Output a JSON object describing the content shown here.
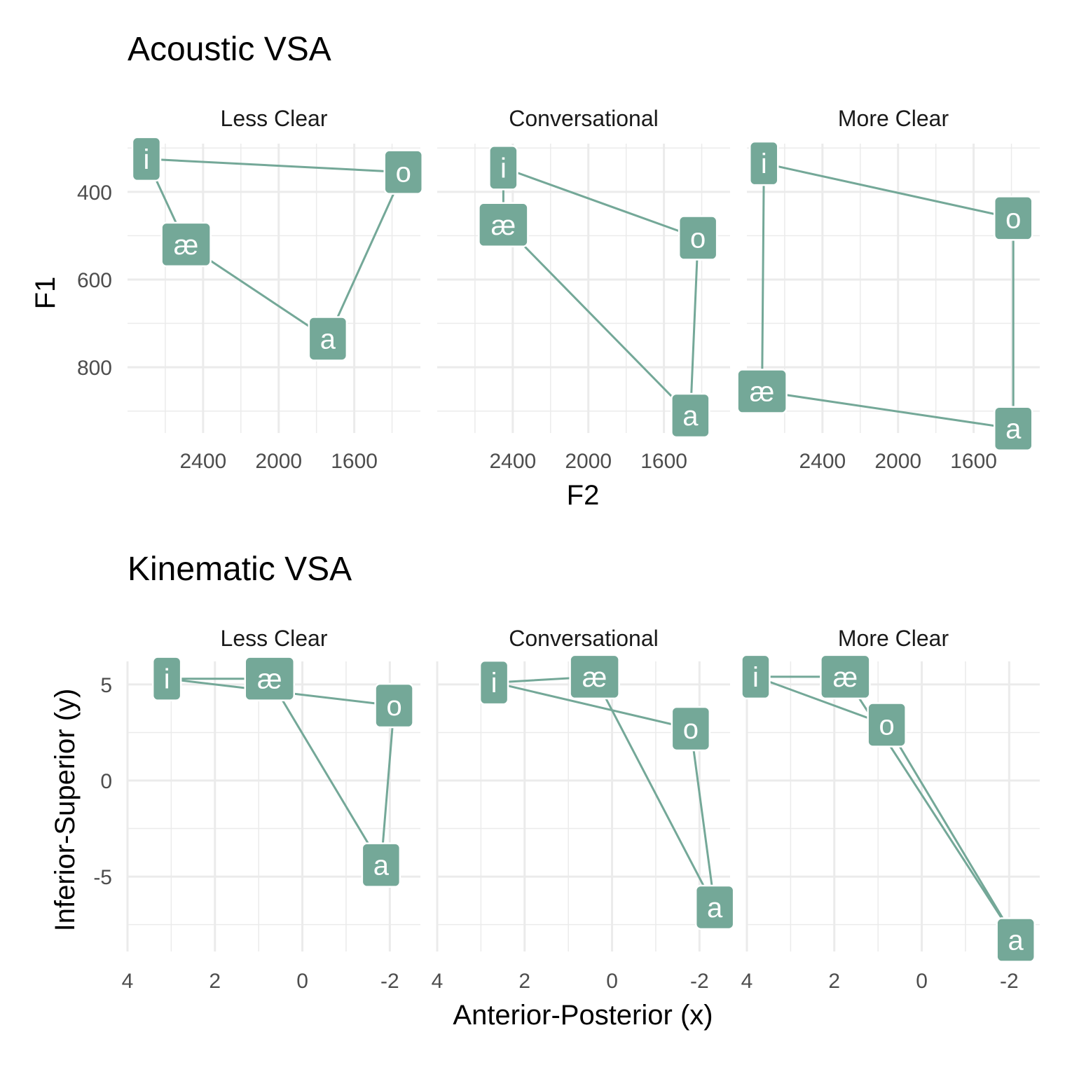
{
  "colors": {
    "accent": "#74a898",
    "grid": "#ebebeb",
    "label_text": "#ffffff"
  },
  "chart_data": [
    {
      "type": "scatter",
      "title": "Acoustic VSA",
      "xlabel": "F2",
      "ylabel": "F1",
      "x_reversed": true,
      "y_reversed": true,
      "xlim": [
        2800,
        1250
      ],
      "ylim": [
        950,
        290
      ],
      "x_breaks": [
        2400,
        2000,
        1600
      ],
      "x_tick_labels": [
        "2400",
        "2000",
        "1600"
      ],
      "y_breaks": [
        400,
        600,
        800
      ],
      "y_tick_labels": [
        "400",
        "600",
        "800"
      ],
      "grid": true,
      "polygon_order": [
        "i",
        "o",
        "a",
        "æ"
      ],
      "facets": [
        {
          "name": "Less Clear",
          "points": [
            {
              "label": "i",
              "x": 2700,
              "y": 325
            },
            {
              "label": "æ",
              "x": 2490,
              "y": 520
            },
            {
              "label": "a",
              "x": 1740,
              "y": 735
            },
            {
              "label": "o",
              "x": 1340,
              "y": 355
            }
          ]
        },
        {
          "name": "Conversational",
          "points": [
            {
              "label": "i",
              "x": 2450,
              "y": 345
            },
            {
              "label": "æ",
              "x": 2450,
              "y": 475
            },
            {
              "label": "a",
              "x": 1460,
              "y": 910
            },
            {
              "label": "o",
              "x": 1420,
              "y": 505
            }
          ]
        },
        {
          "name": "More Clear",
          "points": [
            {
              "label": "i",
              "x": 2710,
              "y": 335
            },
            {
              "label": "æ",
              "x": 2720,
              "y": 855
            },
            {
              "label": "a",
              "x": 1390,
              "y": 940
            },
            {
              "label": "o",
              "x": 1390,
              "y": 460
            }
          ]
        }
      ]
    },
    {
      "type": "scatter",
      "title": "Kinematic VSA",
      "xlabel": "Anterior-Posterior (x)",
      "ylabel": "Inferior-Superior (y)",
      "x_reversed": true,
      "xlim": [
        4,
        -2.7
      ],
      "ylim": [
        -8.9,
        6.2
      ],
      "x_breaks": [
        4,
        2,
        0,
        -2
      ],
      "x_tick_labels": [
        "4",
        "2",
        "0",
        "-2"
      ],
      "y_breaks": [
        5,
        0,
        -5
      ],
      "y_tick_labels": [
        "5",
        "0",
        "-5"
      ],
      "grid": true,
      "polygon_order": [
        "i",
        "æ",
        "a",
        "o"
      ],
      "facets": [
        {
          "name": "Less Clear",
          "points": [
            {
              "label": "i",
              "x": 3.1,
              "y": 5.3
            },
            {
              "label": "æ",
              "x": 0.75,
              "y": 5.3
            },
            {
              "label": "a",
              "x": -1.8,
              "y": -4.4
            },
            {
              "label": "o",
              "x": -2.1,
              "y": 3.9
            }
          ]
        },
        {
          "name": "Conversational",
          "points": [
            {
              "label": "i",
              "x": 2.7,
              "y": 5.1
            },
            {
              "label": "æ",
              "x": 0.4,
              "y": 5.4
            },
            {
              "label": "a",
              "x": -2.35,
              "y": -6.6
            },
            {
              "label": "o",
              "x": -1.8,
              "y": 2.7
            }
          ]
        },
        {
          "name": "More Clear",
          "points": [
            {
              "label": "i",
              "x": 3.8,
              "y": 5.4
            },
            {
              "label": "æ",
              "x": 1.75,
              "y": 5.4
            },
            {
              "label": "a",
              "x": -2.15,
              "y": -8.3
            },
            {
              "label": "o",
              "x": 0.8,
              "y": 2.9
            }
          ]
        }
      ]
    }
  ]
}
